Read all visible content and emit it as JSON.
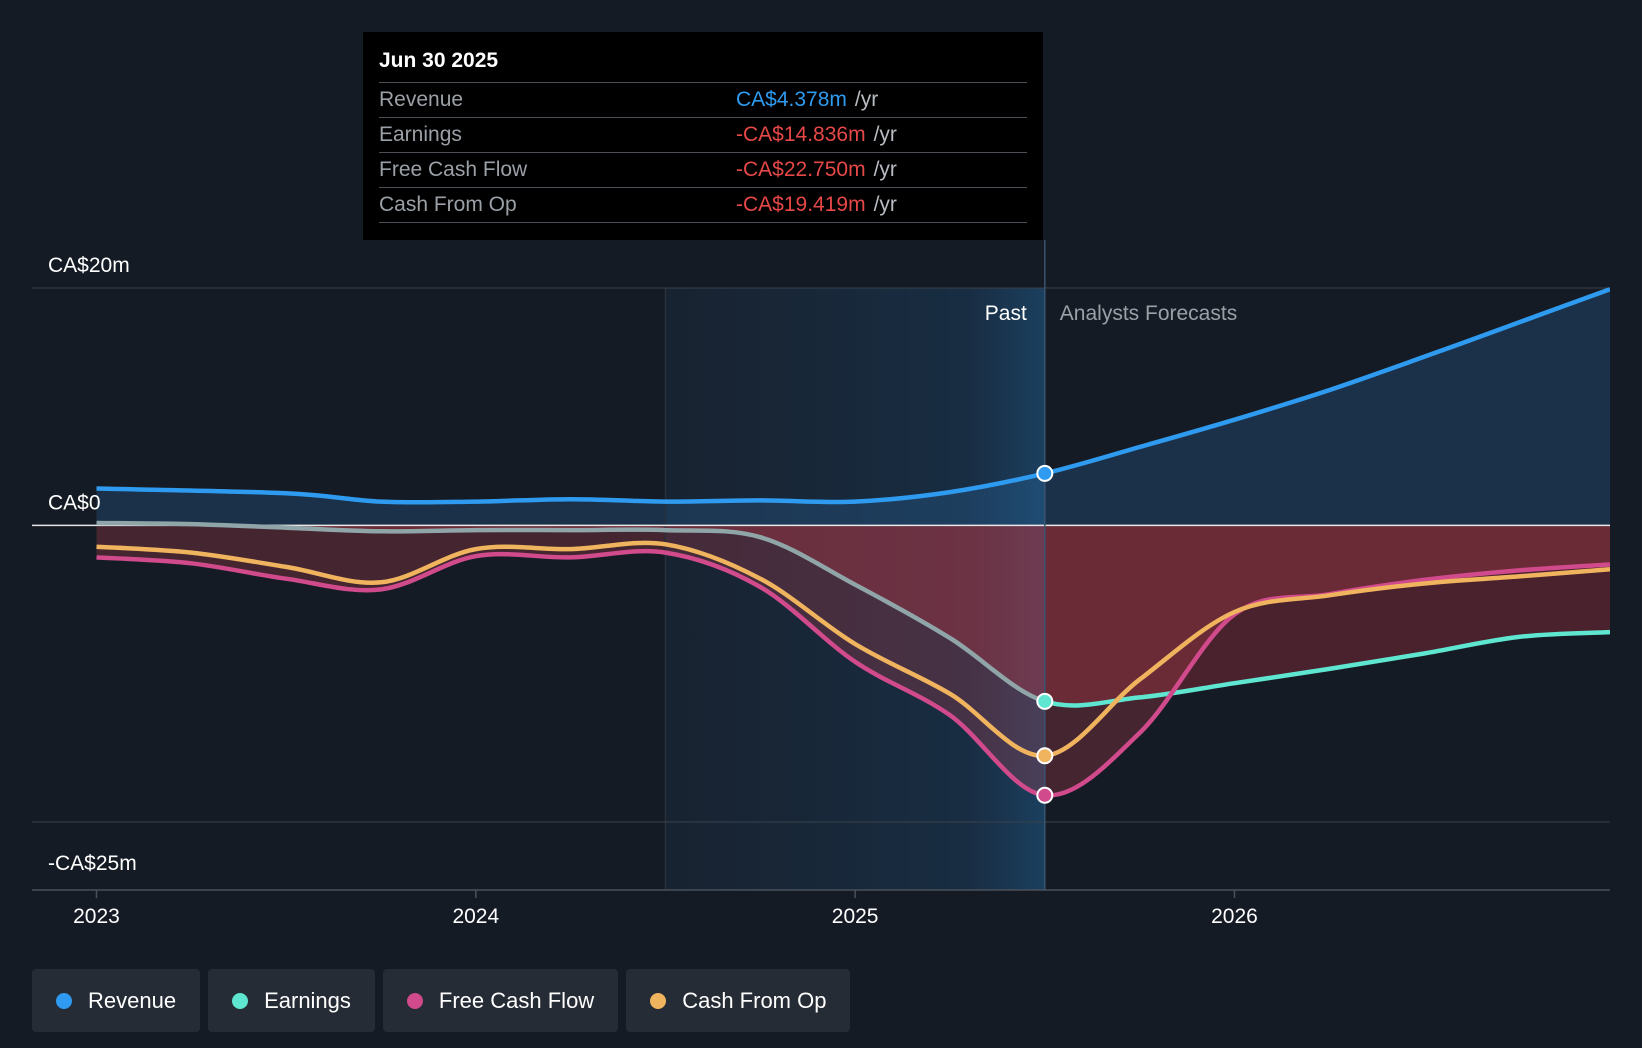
{
  "tooltip": {
    "date": "Jun 30 2025",
    "rows": [
      {
        "label": "Revenue",
        "value": "CA$4.378m",
        "unit": "/yr"
      },
      {
        "label": "Earnings",
        "value": "-CA$14.836m",
        "unit": "/yr"
      },
      {
        "label": "Free Cash Flow",
        "value": "-CA$22.750m",
        "unit": "/yr"
      },
      {
        "label": "Cash From Op",
        "value": "-CA$19.419m",
        "unit": "/yr"
      }
    ]
  },
  "labels": {
    "past": "Past",
    "forecast": "Analysts Forecasts"
  },
  "legend": [
    {
      "label": "Revenue",
      "color": "#2e9bf0"
    },
    {
      "label": "Earnings",
      "color": "#5ee6d0"
    },
    {
      "label": "Free Cash Flow",
      "color": "#d04a8c"
    },
    {
      "label": "Cash From Op",
      "color": "#f0b35e"
    }
  ],
  "chart_data": {
    "type": "line",
    "y_ticks": [
      {
        "value": 20,
        "label": "CA$20m"
      },
      {
        "value": 0,
        "label": "CA$0"
      },
      {
        "value": -25,
        "label": "-CA$25m"
      }
    ],
    "x_ticks": [
      {
        "value": 2023.0,
        "label": "2023"
      },
      {
        "value": 2024.0,
        "label": "2024"
      },
      {
        "value": 2025.0,
        "label": "2025"
      },
      {
        "value": 2026.0,
        "label": "2026"
      }
    ],
    "xlim": [
      2022.83,
      2026.99
    ],
    "ylim": [
      -25,
      20
    ],
    "past_region_start": 2024.5,
    "present": 2025.5,
    "series": [
      {
        "name": "Revenue",
        "color": "#2e9bf0",
        "points": [
          [
            2023.0,
            3.1
          ],
          [
            2023.5,
            2.7
          ],
          [
            2023.75,
            2.0
          ],
          [
            2024.0,
            2.0
          ],
          [
            2024.25,
            2.2
          ],
          [
            2024.5,
            2.0
          ],
          [
            2024.75,
            2.1
          ],
          [
            2025.0,
            2.0
          ],
          [
            2025.25,
            2.8
          ],
          [
            2025.5,
            4.378
          ],
          [
            2025.75,
            6.6
          ],
          [
            2026.0,
            8.9
          ],
          [
            2026.25,
            11.4
          ],
          [
            2026.5,
            14.2
          ],
          [
            2026.75,
            17.1
          ],
          [
            2026.99,
            19.9
          ]
        ]
      },
      {
        "name": "Earnings",
        "color": "#5ee6d0",
        "points": [
          [
            2023.0,
            0.2
          ],
          [
            2023.25,
            0.1
          ],
          [
            2023.5,
            -0.2
          ],
          [
            2023.75,
            -0.5
          ],
          [
            2024.0,
            -0.4
          ],
          [
            2024.25,
            -0.4
          ],
          [
            2024.5,
            -0.4
          ],
          [
            2024.75,
            -1.0
          ],
          [
            2025.0,
            -5.0
          ],
          [
            2025.25,
            -9.5
          ],
          [
            2025.5,
            -14.836
          ],
          [
            2025.75,
            -14.5
          ],
          [
            2026.0,
            -13.3
          ],
          [
            2026.25,
            -12.1
          ],
          [
            2026.5,
            -10.8
          ],
          [
            2026.75,
            -9.4
          ],
          [
            2026.99,
            -9.0
          ]
        ]
      },
      {
        "name": "Free Cash Flow",
        "color": "#d04a8c",
        "points": [
          [
            2023.0,
            -2.7
          ],
          [
            2023.25,
            -3.2
          ],
          [
            2023.5,
            -4.5
          ],
          [
            2023.75,
            -5.4
          ],
          [
            2024.0,
            -2.6
          ],
          [
            2024.25,
            -2.7
          ],
          [
            2024.5,
            -2.3
          ],
          [
            2024.75,
            -5.2
          ],
          [
            2025.0,
            -11.5
          ],
          [
            2025.25,
            -16.0
          ],
          [
            2025.5,
            -22.75
          ],
          [
            2025.75,
            -17.5
          ],
          [
            2026.0,
            -7.5
          ],
          [
            2026.25,
            -5.8
          ],
          [
            2026.5,
            -4.6
          ],
          [
            2026.75,
            -3.8
          ],
          [
            2026.99,
            -3.3
          ]
        ]
      },
      {
        "name": "Cash From Op",
        "color": "#f0b35e",
        "points": [
          [
            2023.0,
            -1.8
          ],
          [
            2023.25,
            -2.3
          ],
          [
            2023.5,
            -3.5
          ],
          [
            2023.75,
            -4.8
          ],
          [
            2024.0,
            -2.0
          ],
          [
            2024.25,
            -2.0
          ],
          [
            2024.5,
            -1.6
          ],
          [
            2024.75,
            -4.5
          ],
          [
            2025.0,
            -10.0
          ],
          [
            2025.25,
            -14.2
          ],
          [
            2025.5,
            -19.419
          ],
          [
            2025.75,
            -13.0
          ],
          [
            2026.0,
            -7.3
          ],
          [
            2026.25,
            -5.9
          ],
          [
            2026.5,
            -4.9
          ],
          [
            2026.75,
            -4.3
          ],
          [
            2026.99,
            -3.7
          ]
        ]
      }
    ]
  }
}
